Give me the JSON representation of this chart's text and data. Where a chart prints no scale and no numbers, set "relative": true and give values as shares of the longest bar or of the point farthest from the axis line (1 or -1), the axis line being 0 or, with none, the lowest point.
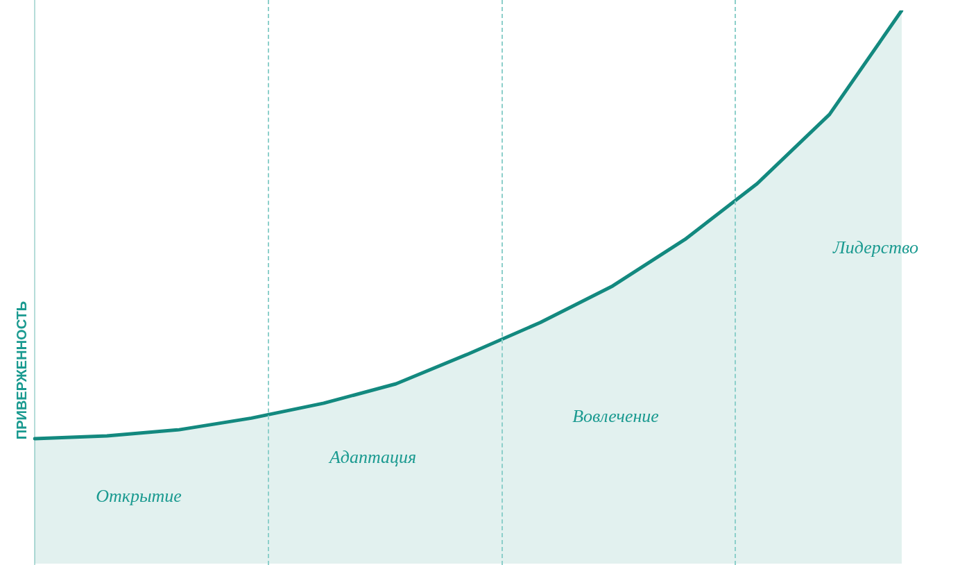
{
  "chart_data": {
    "type": "area",
    "relative": true,
    "ylabel": "ПРИВЕРЖЕННОСТЬ",
    "categories": [
      null,
      null,
      null,
      null,
      null,
      null,
      null,
      null,
      null,
      null,
      null,
      null,
      null
    ],
    "series": [
      {
        "color": "#13897f",
        "values": [
          0.226,
          0.231,
          0.242,
          0.263,
          0.29,
          0.325,
          0.379,
          0.436,
          0.502,
          0.586,
          0.687,
          0.812,
          1
        ]
      }
    ],
    "annotations": [
      "Открытие",
      "Адаптация",
      "Вовлечение",
      "Лидерство"
    ]
  }
}
